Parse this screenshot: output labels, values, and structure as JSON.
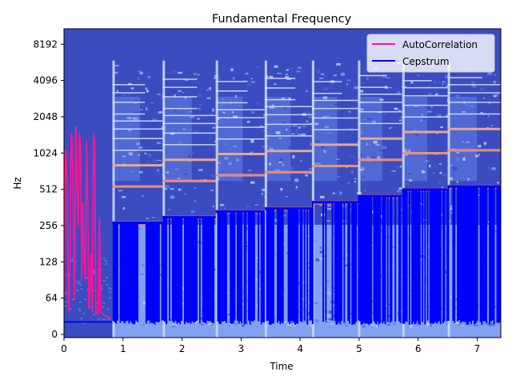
{
  "chart_data": {
    "type": "line",
    "title": "Fundamental Frequency",
    "xlabel": "Time",
    "ylabel": "Hz",
    "xlim": [
      0,
      7.4
    ],
    "y_scale": "symlog-base2",
    "y_tick_labels": [
      "0",
      "64",
      "128",
      "256",
      "512",
      "1024",
      "2048",
      "4096",
      "8192"
    ],
    "y_tick_values": [
      0,
      64,
      128,
      256,
      512,
      1024,
      2048,
      4096,
      8192
    ],
    "x_tick_labels": [
      "0",
      "1",
      "2",
      "3",
      "4",
      "5",
      "6",
      "7"
    ],
    "x_tick_values": [
      0,
      1,
      2,
      3,
      4,
      5,
      6,
      7
    ],
    "grid": false,
    "legend_position": "top-right",
    "background": "spectrogram",
    "colors": {
      "autocorrelation": "#ff1493",
      "cepstrum": "#0000ff",
      "spectrogram_low": "#3b4cc0",
      "spectrogram_high": "#f08060"
    },
    "segments": [
      {
        "start": 0.82,
        "end": 1.67,
        "f0": 270,
        "harmonics": [
          540,
          810,
          1080,
          1350,
          1620,
          1890,
          2160,
          2700,
          3240,
          3780
        ]
      },
      {
        "start": 1.67,
        "end": 2.57,
        "f0": 300,
        "harmonics": [
          600,
          900,
          1200,
          1500,
          1800,
          2100,
          2400,
          3000,
          3600,
          4200
        ]
      },
      {
        "start": 2.57,
        "end": 3.4,
        "f0": 335,
        "harmonics": [
          670,
          1005,
          1340,
          1675,
          2010,
          2345,
          2680,
          3350,
          4020
        ]
      },
      {
        "start": 3.4,
        "end": 4.2,
        "f0": 355,
        "harmonics": [
          710,
          1065,
          1420,
          1775,
          2130,
          2485,
          2840,
          3550,
          4260
        ]
      },
      {
        "start": 4.2,
        "end": 4.98,
        "f0": 400,
        "harmonics": [
          800,
          1200,
          1600,
          2000,
          2400,
          2800,
          3200,
          4000
        ]
      },
      {
        "start": 4.98,
        "end": 5.73,
        "f0": 450,
        "harmonics": [
          900,
          1350,
          1800,
          2250,
          2700,
          3150,
          3600,
          4500
        ]
      },
      {
        "start": 5.73,
        "end": 6.5,
        "f0": 510,
        "harmonics": [
          1020,
          1530,
          2040,
          2550,
          3060,
          3570,
          4080
        ]
      },
      {
        "start": 6.5,
        "end": 7.4,
        "f0": 540,
        "harmonics": [
          1080,
          1620,
          2160,
          2700,
          3240,
          3780,
          4320
        ]
      }
    ],
    "series": [
      {
        "name": "AutoCorrelation",
        "color": "#ff1493",
        "x": [
          0.0,
          0.02,
          0.04,
          0.06,
          0.08,
          0.1,
          0.12,
          0.14,
          0.16,
          0.18,
          0.2,
          0.22,
          0.24,
          0.26,
          0.28,
          0.3,
          0.32,
          0.34,
          0.36,
          0.38,
          0.4,
          0.42,
          0.44,
          0.46,
          0.48,
          0.5,
          0.52,
          0.54,
          0.56,
          0.58,
          0.6,
          0.62,
          0.64,
          0.66,
          0.68,
          0.7,
          0.72,
          0.74,
          0.76,
          0.78,
          0.8
        ],
        "y": [
          60,
          1100,
          900,
          200,
          40,
          120,
          1500,
          1300,
          300,
          60,
          1700,
          600,
          250,
          1500,
          1200,
          90,
          400,
          140,
          90,
          1300,
          500,
          45,
          70,
          150,
          40,
          1500,
          1200,
          35,
          40,
          38,
          300,
          40,
          38,
          36,
          34,
          33,
          32,
          31,
          30,
          29,
          28
        ]
      },
      {
        "name": "Cepstrum",
        "color": "#0000ff",
        "x": [
          0.0,
          0.82
        ],
        "y": [
          22,
          22
        ]
      }
    ]
  }
}
